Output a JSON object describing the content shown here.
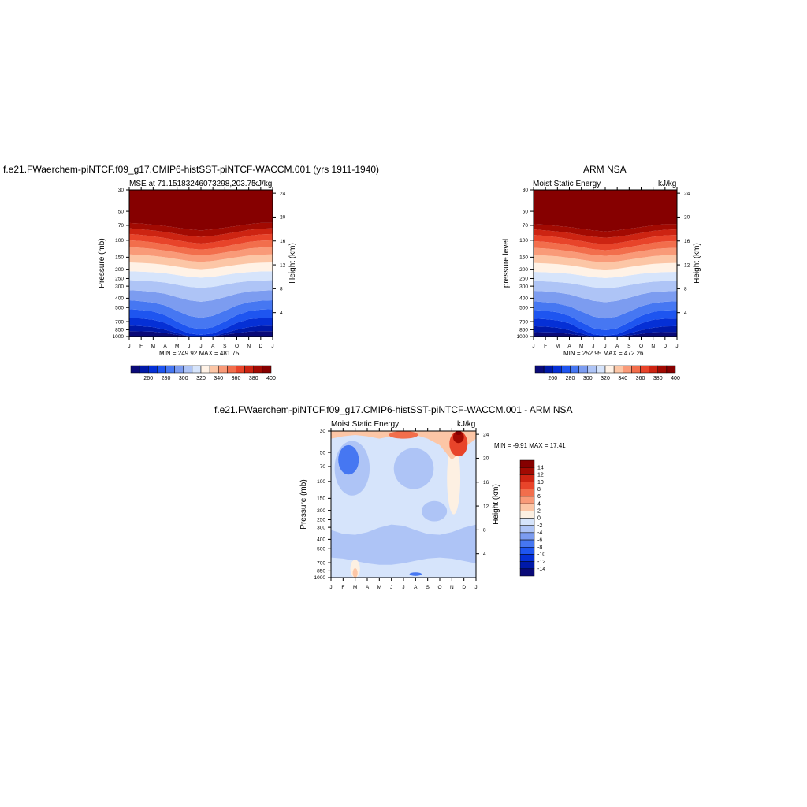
{
  "months": [
    "J",
    "F",
    "M",
    "A",
    "M",
    "J",
    "J",
    "A",
    "S",
    "O",
    "N",
    "D",
    "J"
  ],
  "pressure_ticks": [
    "30",
    "50",
    "70",
    "100",
    "150",
    "200",
    "250",
    "300",
    "400",
    "500",
    "700",
    "850",
    "1000"
  ],
  "height_ticks": [
    "4",
    "8",
    "12",
    "16",
    "20",
    "24"
  ],
  "colors": {
    "abs": [
      "#0a0a78",
      "#0019a8",
      "#0530d6",
      "#1e55f0",
      "#4677f2",
      "#7c9cf0",
      "#aec4f6",
      "#d6e4fb",
      "#fff2e6",
      "#fcc6a6",
      "#f99a78",
      "#f26e4c",
      "#e8442a",
      "#cd2412",
      "#a20a02",
      "#860000"
    ],
    "diff": [
      "#0a0a78",
      "#0019a8",
      "#0530d6",
      "#1e55f0",
      "#4677f2",
      "#7c9cf0",
      "#aec4f6",
      "#d6e4fb",
      "#fdf0e2",
      "#fcc6a6",
      "#f99a78",
      "#f26e4c",
      "#e8442a",
      "#cd2412",
      "#a20a02",
      "#860000"
    ]
  },
  "panel1": {
    "title": "f.e21.FWaerchem-piNTCF.f09_g17.CMIP6-histSST-piNTCF-WACCM.001 (yrs 1911-1940)",
    "left_label": "MSE at 71.15183246073298,203.75",
    "right_label": "kJ/kg",
    "ylabel": "Pressure (mb)",
    "y2label": "Height (km)",
    "minmax": "MIN = 249.92  MAX = 481.75"
  },
  "panel2": {
    "title": "ARM NSA",
    "left_label": "Moist Static Energy",
    "right_label": "kJ/kg",
    "ylabel": "pressure level",
    "y2label": "Height (km)",
    "minmax": "MIN = 252.95  MAX = 472.26"
  },
  "panel3": {
    "title": "f.e21.FWaerchem-piNTCF.f09_g17.CMIP6-histSST-piNTCF-WACCM.001 - ARM NSA",
    "left_label": "Moist Static Energy",
    "right_label": "kJ/kg",
    "ylabel": "Pressure (mb)",
    "y2label": "Height (km)",
    "minmax": "MIN =  -9.91  MAX =  17.41"
  },
  "colorbar_abs_labels": [
    "260",
    "280",
    "300",
    "320",
    "340",
    "360",
    "380",
    "400"
  ],
  "colorbar_diff_labels": [
    "14",
    "12",
    "10",
    "8",
    "6",
    "4",
    "2",
    "0",
    "-2",
    "-4",
    "-6",
    "-8",
    "-10",
    "-12",
    "-14"
  ],
  "chart_data": [
    {
      "type": "heatmap",
      "title": "f.e21.FWaerchem-piNTCF.f09_g17.CMIP6-histSST-piNTCF-WACCM.001 (yrs 1911-1940)",
      "subtitle": "MSE at 71.15183246073298,203.75",
      "units": "kJ/kg",
      "x": [
        "J",
        "F",
        "M",
        "A",
        "M",
        "J",
        "J",
        "A",
        "S",
        "O",
        "N",
        "D",
        "J"
      ],
      "ylabel": "Pressure (mb)",
      "y2label": "Height (km)",
      "pressure_levels": [
        30,
        50,
        70,
        100,
        150,
        200,
        250,
        300,
        400,
        500,
        700,
        850,
        1000
      ],
      "levels": [
        260,
        270,
        280,
        290,
        300,
        310,
        320,
        330,
        340,
        350,
        360,
        370,
        380,
        390,
        400
      ],
      "min": 249.92,
      "max": 481.75,
      "contours_p": [
        [
          1000,
          1000,
          1000,
          1000,
          1000,
          1000,
          1000,
          1000,
          1000,
          1000,
          1000,
          1000,
          1000
        ],
        [
          880,
          885,
          890,
          920,
          960,
          990,
          1000,
          990,
          960,
          920,
          890,
          880,
          880
        ],
        [
          770,
          780,
          800,
          850,
          920,
          990,
          1000,
          990,
          920,
          850,
          800,
          775,
          770
        ],
        [
          640,
          650,
          670,
          720,
          830,
          930,
          960,
          930,
          830,
          720,
          660,
          645,
          640
        ],
        [
          520,
          530,
          550,
          600,
          700,
          800,
          840,
          800,
          700,
          600,
          545,
          525,
          520
        ],
        [
          420,
          430,
          445,
          475,
          540,
          610,
          640,
          610,
          540,
          475,
          440,
          425,
          420
        ],
        [
          330,
          335,
          345,
          360,
          390,
          420,
          435,
          420,
          390,
          360,
          340,
          335,
          330
        ],
        [
          260,
          263,
          268,
          275,
          290,
          305,
          312,
          305,
          290,
          275,
          266,
          262,
          260
        ],
        [
          210,
          212,
          215,
          220,
          230,
          240,
          245,
          240,
          230,
          220,
          214,
          211,
          210
        ],
        [
          170,
          172,
          175,
          180,
          188,
          196,
          200,
          196,
          188,
          180,
          174,
          171,
          170
        ],
        [
          140,
          142,
          145,
          150,
          157,
          164,
          168,
          164,
          157,
          150,
          144,
          141,
          140
        ],
        [
          118,
          120,
          123,
          128,
          134,
          140,
          143,
          140,
          134,
          128,
          122,
          119,
          118
        ],
        [
          100,
          102,
          105,
          110,
          116,
          122,
          125,
          122,
          116,
          110,
          104,
          101,
          100
        ],
        [
          86,
          88,
          91,
          95,
          100,
          105,
          108,
          105,
          100,
          95,
          90,
          87,
          86
        ],
        [
          75,
          77,
          79,
          82,
          86,
          90,
          92,
          90,
          86,
          82,
          78,
          76,
          75
        ],
        [
          66,
          67,
          69,
          71,
          74,
          77,
          79,
          77,
          74,
          71,
          68,
          66,
          66
        ]
      ]
    },
    {
      "type": "heatmap",
      "title": "ARM NSA",
      "subtitle": "Moist Static Energy",
      "units": "kJ/kg",
      "x": [
        "J",
        "F",
        "M",
        "A",
        "M",
        "J",
        "J",
        "A",
        "S",
        "O",
        "N",
        "D",
        "J"
      ],
      "ylabel": "pressure level",
      "y2label": "Height (km)",
      "pressure_levels": [
        30,
        50,
        70,
        100,
        150,
        200,
        250,
        300,
        400,
        500,
        700,
        850,
        1000
      ],
      "levels": [
        260,
        270,
        280,
        290,
        300,
        310,
        320,
        330,
        340,
        350,
        360,
        370,
        380,
        390,
        400
      ],
      "min": 252.95,
      "max": 472.26,
      "contours_p": [
        [
          1000,
          1000,
          1000,
          1000,
          1000,
          1000,
          1000,
          1000,
          1000,
          1000,
          1000,
          1000,
          1000
        ],
        [
          900,
          905,
          910,
          940,
          975,
          1000,
          1000,
          1000,
          975,
          940,
          905,
          900,
          900
        ],
        [
          780,
          790,
          810,
          860,
          930,
          1000,
          1000,
          1000,
          930,
          860,
          810,
          785,
          780
        ],
        [
          650,
          660,
          680,
          730,
          840,
          950,
          980,
          950,
          840,
          730,
          670,
          655,
          650
        ],
        [
          530,
          540,
          560,
          610,
          710,
          820,
          860,
          820,
          710,
          610,
          555,
          535,
          530
        ],
        [
          430,
          440,
          455,
          485,
          550,
          620,
          650,
          620,
          550,
          485,
          450,
          435,
          430
        ],
        [
          335,
          340,
          350,
          365,
          395,
          425,
          440,
          425,
          395,
          365,
          345,
          340,
          335
        ],
        [
          265,
          268,
          272,
          279,
          293,
          308,
          315,
          308,
          293,
          279,
          270,
          266,
          265
        ],
        [
          213,
          215,
          218,
          223,
          232,
          242,
          247,
          242,
          232,
          223,
          217,
          214,
          213
        ],
        [
          172,
          174,
          177,
          182,
          190,
          198,
          202,
          198,
          190,
          182,
          176,
          173,
          172
        ],
        [
          142,
          144,
          147,
          152,
          159,
          166,
          170,
          166,
          159,
          152,
          146,
          143,
          142
        ],
        [
          120,
          122,
          125,
          130,
          136,
          142,
          145,
          142,
          136,
          130,
          124,
          121,
          120
        ],
        [
          102,
          104,
          107,
          112,
          118,
          124,
          127,
          124,
          118,
          112,
          106,
          103,
          102
        ],
        [
          88,
          90,
          93,
          97,
          102,
          107,
          110,
          107,
          102,
          97,
          92,
          89,
          88
        ],
        [
          77,
          79,
          81,
          84,
          88,
          92,
          94,
          92,
          88,
          84,
          80,
          78,
          77
        ],
        [
          68,
          69,
          71,
          73,
          76,
          79,
          81,
          79,
          76,
          73,
          70,
          68,
          68
        ]
      ]
    },
    {
      "type": "heatmap",
      "title": "f.e21.FWaerchem-piNTCF.f09_g17.CMIP6-histSST-piNTCF-WACCM.001 - ARM NSA",
      "subtitle": "Moist Static Energy",
      "units": "kJ/kg",
      "x": [
        "J",
        "F",
        "M",
        "A",
        "M",
        "J",
        "J",
        "A",
        "S",
        "O",
        "N",
        "D",
        "J"
      ],
      "ylabel": "Pressure (mb)",
      "y2label": "Height (km)",
      "pressure_levels": [
        30,
        50,
        70,
        100,
        150,
        200,
        250,
        300,
        400,
        500,
        700,
        850,
        1000
      ],
      "levels": [
        -14,
        -12,
        -10,
        -8,
        -6,
        -4,
        -2,
        0,
        2,
        4,
        6,
        8,
        10,
        12,
        14
      ],
      "min": -9.91,
      "max": 17.41,
      "background_level": "-2 to 0",
      "features": [
        {
          "desc": "band",
          "level": "-4 to -2",
          "month_range": [
            0,
            12
          ],
          "p_range": [
            300,
            700
          ]
        },
        {
          "desc": "blob",
          "level": "-6 to -4",
          "month_range": [
            0.3,
            3
          ],
          "p_range": [
            38,
            130
          ]
        },
        {
          "desc": "blob",
          "level": "-8 to -6",
          "month_range": [
            0.6,
            2.3
          ],
          "p_range": [
            42,
            80
          ]
        },
        {
          "desc": "blob",
          "level": "0 to 2",
          "month_range": [
            9.7,
            10.6
          ],
          "p_range": [
            40,
            200
          ]
        },
        {
          "desc": "blob",
          "level": "2 to 4",
          "month_range": [
            1.6,
            2.4
          ],
          "p_range": [
            650,
            1000
          ]
        },
        {
          "desc": "top max",
          "level": "14+",
          "month": 10.5,
          "p": 28
        }
      ]
    }
  ]
}
